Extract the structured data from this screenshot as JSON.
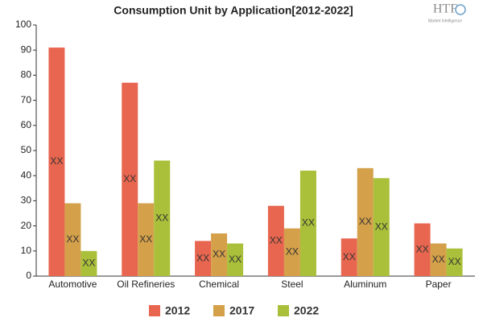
{
  "chart_data": {
    "type": "bar",
    "title": "Consumption Unit by  Application[2012-2022]",
    "logo": {
      "text": "HTF",
      "subtext": "Market Intelligence"
    },
    "categories": [
      "Automotive",
      "Oil Refineries",
      "Chemical",
      "Steel",
      "Aluminum",
      "Paper"
    ],
    "series": [
      {
        "name": "2012",
        "color": "#e8664f",
        "values": [
          91,
          77,
          14,
          28,
          15,
          21
        ],
        "value_labels": [
          "XX",
          "XX",
          "XX",
          "XX",
          "XX",
          "XX"
        ]
      },
      {
        "name": "2017",
        "color": "#d4a04a",
        "values": [
          29,
          29,
          17,
          19,
          43,
          13
        ],
        "value_labels": [
          "XX",
          "XX",
          "XX",
          "XX",
          "XX",
          "XX"
        ]
      },
      {
        "name": "2022",
        "color": "#aabf3a",
        "values": [
          10,
          46,
          13,
          42,
          39,
          11
        ],
        "value_labels": [
          "XX",
          "XX",
          "XX",
          "XX",
          "XX",
          "XX"
        ]
      }
    ],
    "ylim": [
      0,
      100
    ],
    "yticks": [
      0,
      10,
      20,
      30,
      40,
      50,
      60,
      70,
      80,
      90,
      100
    ],
    "grid": false,
    "legend": "bottom"
  }
}
